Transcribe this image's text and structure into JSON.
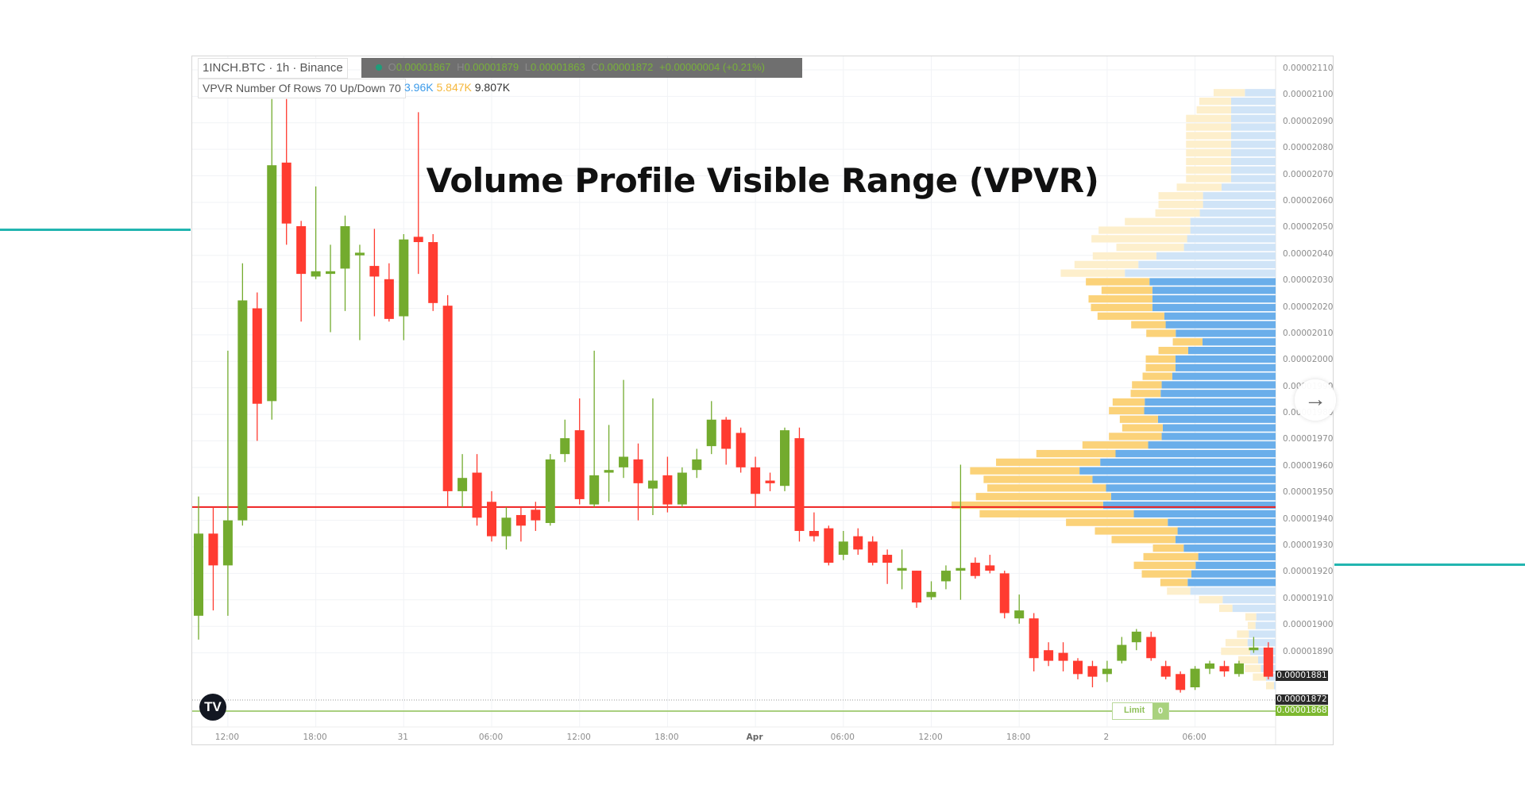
{
  "header": {
    "symbol": "1INCH.BTC · 1h · Binance",
    "ohlc": {
      "o_key": "O",
      "o": "0.00001867",
      "h_key": "H",
      "h": "0.00001879",
      "l_key": "L",
      "l": "0.00001863",
      "c_key": "C",
      "c": "0.00001872",
      "change": "+0.00000004 (+0.21%)"
    },
    "indicator": "VPVR Number Of Rows 70 Up/Down 70",
    "indicator_values": {
      "up": "3.96K",
      "down": "5.847K",
      "total": "9.807K"
    }
  },
  "title": "Volume Profile Visible Range (VPVR)",
  "colors": {
    "up_candle": "#73ab2e",
    "down_candle": "#ff3b30",
    "vp_up": "#6aaeea",
    "vp_down": "#fbd279",
    "vp_up_outside": "#d0e4f7",
    "vp_down_outside": "#fdefcc",
    "poc_line": "#ee2020",
    "accent": "#22b5b0",
    "last_price_bg": "#2a2a2a",
    "order_bg": "#7cb82f"
  },
  "price_axis": [
    "0.00002110",
    "0.00002100",
    "0.00002090",
    "0.00002080",
    "0.00002070",
    "0.00002060",
    "0.00002050",
    "0.00002040",
    "0.00002030",
    "0.00002020",
    "0.00002010",
    "0.00002000",
    "0.00001990",
    "0.00001980",
    "0.00001970",
    "0.00001960",
    "0.00001950",
    "0.00001940",
    "0.00001930",
    "0.00001920",
    "0.00001910",
    "0.00001900",
    "0.00001890"
  ],
  "time_axis": [
    {
      "label": "12:00",
      "time": "Mar 30 12:00"
    },
    {
      "label": "18:00",
      "time": "Mar 30 18:00"
    },
    {
      "label": "31",
      "time": "Mar 31 00:00"
    },
    {
      "label": "06:00",
      "time": "Mar 31 06:00"
    },
    {
      "label": "12:00",
      "time": "Mar 31 12:00"
    },
    {
      "label": "18:00",
      "time": "Mar 31 18:00"
    },
    {
      "label": "Apr",
      "time": "Apr 1 00:00",
      "bold": true
    },
    {
      "label": "06:00",
      "time": "Apr 1 06:00"
    },
    {
      "label": "12:00",
      "time": "Apr 1 12:00"
    },
    {
      "label": "18:00",
      "time": "Apr 1 18:00"
    },
    {
      "label": "2",
      "time": "Apr 2 00:00"
    },
    {
      "label": "06:00",
      "time": "Apr 2 06:00"
    }
  ],
  "price_tags": {
    "last": "0.00001881",
    "crosshair": "0.00001872",
    "order": "0.00001868"
  },
  "order": {
    "label": "Limit",
    "qty": "0"
  },
  "chart_data": {
    "type": "candlestick",
    "columns": [
      "time",
      "open",
      "high",
      "low",
      "close"
    ],
    "candles": [
      [
        "Mar 30 10:00",
        1.904e-05,
        1.949e-05,
        1.895e-05,
        1.935e-05
      ],
      [
        "Mar 30 11:00",
        1.935e-05,
        1.945e-05,
        1.906e-05,
        1.923e-05
      ],
      [
        "Mar 30 12:00",
        1.923e-05,
        2.004e-05,
        1.904e-05,
        1.94e-05
      ],
      [
        "Mar 30 13:00",
        1.94e-05,
        2.037e-05,
        1.938e-05,
        2.023e-05
      ],
      [
        "Mar 30 14:00",
        2.02e-05,
        2.026e-05,
        1.97e-05,
        1.984e-05
      ],
      [
        "Mar 30 15:00",
        1.985e-05,
        2.099e-05,
        1.978e-05,
        2.074e-05
      ],
      [
        "Mar 30 16:00",
        2.075e-05,
        2.099e-05,
        2.044e-05,
        2.052e-05
      ],
      [
        "Mar 30 17:00",
        2.051e-05,
        2.053e-05,
        2.015e-05,
        2.033e-05
      ],
      [
        "Mar 30 18:00",
        2.032e-05,
        2.066e-05,
        2.031e-05,
        2.034e-05
      ],
      [
        "Mar 30 19:00",
        2.033e-05,
        2.044e-05,
        2.011e-05,
        2.034e-05
      ],
      [
        "Mar 30 20:00",
        2.035e-05,
        2.055e-05,
        2.019e-05,
        2.051e-05
      ],
      [
        "Mar 30 21:00",
        2.04e-05,
        2.044e-05,
        2.008e-05,
        2.041e-05
      ],
      [
        "Mar 30 22:00",
        2.036e-05,
        2.05e-05,
        2.017e-05,
        2.032e-05
      ],
      [
        "Mar 30 23:00",
        2.031e-05,
        2.037e-05,
        2.015e-05,
        2.016e-05
      ],
      [
        "Mar 31 00:00",
        2.017e-05,
        2.048e-05,
        2.008e-05,
        2.046e-05
      ],
      [
        "Mar 31 01:00",
        2.047e-05,
        2.094e-05,
        2.033e-05,
        2.045e-05
      ],
      [
        "Mar 31 02:00",
        2.045e-05,
        2.048e-05,
        2.019e-05,
        2.022e-05
      ],
      [
        "Mar 31 03:00",
        2.021e-05,
        2.025e-05,
        1.945e-05,
        1.951e-05
      ],
      [
        "Mar 31 04:00",
        1.951e-05,
        1.965e-05,
        1.945e-05,
        1.956e-05
      ],
      [
        "Mar 31 05:00",
        1.958e-05,
        1.965e-05,
        1.938e-05,
        1.941e-05
      ],
      [
        "Mar 31 06:00",
        1.947e-05,
        1.951e-05,
        1.932e-05,
        1.934e-05
      ],
      [
        "Mar 31 07:00",
        1.934e-05,
        1.945e-05,
        1.929e-05,
        1.941e-05
      ],
      [
        "Mar 31 08:00",
        1.942e-05,
        1.945e-05,
        1.932e-05,
        1.938e-05
      ],
      [
        "Mar 31 09:00",
        1.944e-05,
        1.947e-05,
        1.936e-05,
        1.94e-05
      ],
      [
        "Mar 31 10:00",
        1.939e-05,
        1.965e-05,
        1.938e-05,
        1.963e-05
      ],
      [
        "Mar 31 11:00",
        1.965e-05,
        1.978e-05,
        1.962e-05,
        1.971e-05
      ],
      [
        "Mar 31 12:00",
        1.974e-05,
        1.986e-05,
        1.946e-05,
        1.948e-05
      ],
      [
        "Mar 31 13:00",
        1.946e-05,
        2.004e-05,
        1.945e-05,
        1.957e-05
      ],
      [
        "Mar 31 14:00",
        1.958e-05,
        1.976e-05,
        1.947e-05,
        1.959e-05
      ],
      [
        "Mar 31 15:00",
        1.96e-05,
        1.993e-05,
        1.956e-05,
        1.964e-05
      ],
      [
        "Mar 31 16:00",
        1.963e-05,
        1.969e-05,
        1.94e-05,
        1.954e-05
      ],
      [
        "Mar 31 17:00",
        1.952e-05,
        1.986e-05,
        1.942e-05,
        1.955e-05
      ],
      [
        "Mar 31 18:00",
        1.957e-05,
        1.964e-05,
        1.943e-05,
        1.946e-05
      ],
      [
        "Mar 31 19:00",
        1.946e-05,
        1.96e-05,
        1.945e-05,
        1.958e-05
      ],
      [
        "Mar 31 20:00",
        1.959e-05,
        1.967e-05,
        1.956e-05,
        1.963e-05
      ],
      [
        "Mar 31 21:00",
        1.968e-05,
        1.985e-05,
        1.965e-05,
        1.978e-05
      ],
      [
        "Mar 31 22:00",
        1.978e-05,
        1.979e-05,
        1.961e-05,
        1.967e-05
      ],
      [
        "Mar 31 23:00",
        1.973e-05,
        1.975e-05,
        1.958e-05,
        1.96e-05
      ],
      [
        "Apr 1 00:00",
        1.96e-05,
        1.964e-05,
        1.945e-05,
        1.95e-05
      ],
      [
        "Apr 1 01:00",
        1.955e-05,
        1.958e-05,
        1.951e-05,
        1.954e-05
      ],
      [
        "Apr 1 02:00",
        1.953e-05,
        1.975e-05,
        1.951e-05,
        1.974e-05
      ],
      [
        "Apr 1 03:00",
        1.971e-05,
        1.975e-05,
        1.932e-05,
        1.936e-05
      ],
      [
        "Apr 1 04:00",
        1.936e-05,
        1.943e-05,
        1.932e-05,
        1.934e-05
      ],
      [
        "Apr 1 05:00",
        1.937e-05,
        1.938e-05,
        1.923e-05,
        1.924e-05
      ],
      [
        "Apr 1 06:00",
        1.927e-05,
        1.936e-05,
        1.925e-05,
        1.932e-05
      ],
      [
        "Apr 1 07:00",
        1.934e-05,
        1.937e-05,
        1.927e-05,
        1.929e-05
      ],
      [
        "Apr 1 08:00",
        1.932e-05,
        1.934e-05,
        1.923e-05,
        1.924e-05
      ],
      [
        "Apr 1 09:00",
        1.927e-05,
        1.929e-05,
        1.916e-05,
        1.924e-05
      ],
      [
        "Apr 1 10:00",
        1.921e-05,
        1.929e-05,
        1.914e-05,
        1.922e-05
      ],
      [
        "Apr 1 11:00",
        1.921e-05,
        1.921e-05,
        1.907e-05,
        1.909e-05
      ],
      [
        "Apr 1 12:00",
        1.911e-05,
        1.917e-05,
        1.91e-05,
        1.913e-05
      ],
      [
        "Apr 1 13:00",
        1.917e-05,
        1.923e-05,
        1.914e-05,
        1.921e-05
      ],
      [
        "Apr 1 14:00",
        1.921e-05,
        1.961e-05,
        1.91e-05,
        1.922e-05
      ],
      [
        "Apr 1 15:00",
        1.924e-05,
        1.926e-05,
        1.918e-05,
        1.919e-05
      ],
      [
        "Apr 1 16:00",
        1.923e-05,
        1.927e-05,
        1.92e-05,
        1.921e-05
      ],
      [
        "Apr 1 17:00",
        1.92e-05,
        1.921e-05,
        1.903e-05,
        1.905e-05
      ],
      [
        "Apr 1 18:00",
        1.903e-05,
        1.912e-05,
        1.901e-05,
        1.906e-05
      ],
      [
        "Apr 1 19:00",
        1.903e-05,
        1.905e-05,
        1.883e-05,
        1.888e-05
      ],
      [
        "Apr 1 20:00",
        1.891e-05,
        1.894e-05,
        1.885e-05,
        1.887e-05
      ],
      [
        "Apr 1 21:00",
        1.89e-05,
        1.894e-05,
        1.883e-05,
        1.887e-05
      ],
      [
        "Apr 1 22:00",
        1.887e-05,
        1.888e-05,
        1.88e-05,
        1.882e-05
      ],
      [
        "Apr 1 23:00",
        1.885e-05,
        1.887e-05,
        1.877e-05,
        1.881e-05
      ],
      [
        "Apr 2 00:00",
        1.882e-05,
        1.887e-05,
        1.879e-05,
        1.884e-05
      ],
      [
        "Apr 2 01:00",
        1.887e-05,
        1.896e-05,
        1.886e-05,
        1.893e-05
      ],
      [
        "Apr 2 02:00",
        1.894e-05,
        1.899e-05,
        1.891e-05,
        1.898e-05
      ],
      [
        "Apr 2 03:00",
        1.896e-05,
        1.898e-05,
        1.887e-05,
        1.888e-05
      ],
      [
        "Apr 2 04:00",
        1.885e-05,
        1.887e-05,
        1.88e-05,
        1.881e-05
      ],
      [
        "Apr 2 05:00",
        1.882e-05,
        1.883e-05,
        1.875e-05,
        1.876e-05
      ],
      [
        "Apr 2 06:00",
        1.877e-05,
        1.885e-05,
        1.876e-05,
        1.884e-05
      ],
      [
        "Apr 2 07:00",
        1.884e-05,
        1.887e-05,
        1.882e-05,
        1.886e-05
      ],
      [
        "Apr 2 08:00",
        1.885e-05,
        1.887e-05,
        1.881e-05,
        1.883e-05
      ],
      [
        "Apr 2 09:00",
        1.882e-05,
        1.887e-05,
        1.881e-05,
        1.886e-05
      ],
      [
        "Apr 2 10:00",
        1.891e-05,
        1.896e-05,
        1.89e-05,
        1.892e-05
      ],
      [
        "Apr 2 11:00",
        1.892e-05,
        1.894e-05,
        1.88e-05,
        1.881e-05
      ]
    ],
    "volume_profile": {
      "rows": 70,
      "range": [
        1.876e-05,
        2.103e-05
      ],
      "value_area": [
        1.912e-05,
        2.032e-05
      ],
      "poc": 1.945e-05,
      "columns": [
        "up",
        "down"
      ],
      "rows_top_to_bottom": [
        [
          116,
          118
        ],
        [
          168,
          120
        ],
        [
          168,
          130
        ],
        [
          168,
          170
        ],
        [
          168,
          170
        ],
        [
          168,
          170
        ],
        [
          168,
          170
        ],
        [
          168,
          170
        ],
        [
          168,
          170
        ],
        [
          168,
          170
        ],
        [
          168,
          170
        ],
        [
          204,
          169
        ],
        [
          274,
          168
        ],
        [
          274,
          168
        ],
        [
          286,
          168
        ],
        [
          322,
          247
        ],
        [
          322,
          346
        ],
        [
          334,
          361
        ],
        [
          346,
          255
        ],
        [
          450,
          240
        ],
        [
          518,
          241
        ],
        [
          569,
          242
        ],
        [
          476,
          240
        ],
        [
          465,
          192
        ],
        [
          465,
          241
        ],
        [
          465,
          232
        ],
        [
          420,
          252
        ],
        [
          415,
          130
        ],
        [
          377,
          111
        ],
        [
          276,
          112
        ],
        [
          330,
          112
        ],
        [
          378,
          112
        ],
        [
          378,
          112
        ],
        [
          390,
          112
        ],
        [
          430,
          112
        ],
        [
          434,
          113
        ],
        [
          494,
          121
        ],
        [
          496,
          133
        ],
        [
          444,
          144
        ],
        [
          426,
          153
        ],
        [
          430,
          199
        ],
        [
          481,
          248
        ],
        [
          604,
          299
        ],
        [
          662,
          393
        ],
        [
          740,
          413
        ],
        [
          691,
          411
        ],
        [
          640,
          448
        ],
        [
          621,
          510
        ],
        [
          651,
          572
        ],
        [
          535,
          582
        ],
        [
          407,
          384
        ],
        [
          370,
          312
        ],
        [
          378,
          241
        ],
        [
          347,
          116
        ],
        [
          292,
          207
        ],
        [
          302,
          233
        ],
        [
          318,
          187
        ],
        [
          332,
          103
        ],
        [
          322,
          88
        ],
        [
          200,
          89
        ],
        [
          163,
          50
        ],
        [
          73,
          41
        ],
        [
          76,
          29
        ],
        [
          101,
          45
        ],
        [
          106,
          83
        ],
        [
          96,
          110
        ],
        [
          66,
          75
        ],
        [
          56,
          60
        ],
        [
          36,
          50
        ],
        [
          6,
          30
        ]
      ]
    },
    "ylim": [
      1.872e-05,
      2.112e-05
    ]
  }
}
